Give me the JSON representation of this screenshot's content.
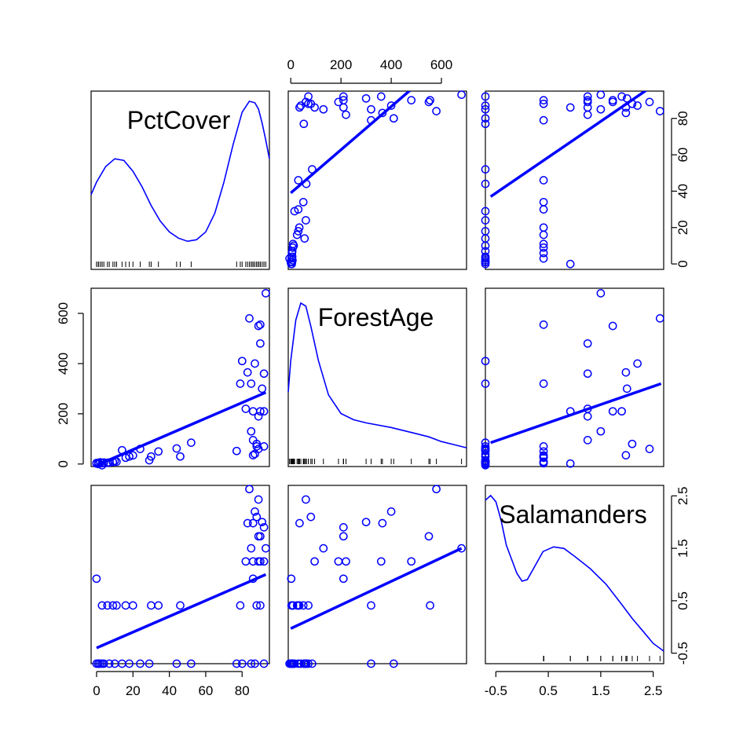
{
  "chart_data": {
    "type": "scatter",
    "title": "",
    "variables": [
      "PctCover",
      "ForestAge",
      "Salamanders"
    ],
    "color": "#0000ff",
    "ranges": {
      "PctCover": [
        -3,
        95
      ],
      "ForestAge": [
        -10,
        700
      ],
      "Salamanders": [
        -0.7,
        2.7
      ]
    },
    "ticks": {
      "PctCover": [
        0,
        20,
        40,
        60,
        80
      ],
      "ForestAge": [
        0,
        200,
        400,
        600
      ],
      "Salamanders": [
        -0.5,
        0.5,
        1.5,
        2.5
      ]
    },
    "tick_labels": {
      "PctCover": [
        "0",
        "20",
        "40",
        "60",
        "80"
      ],
      "ForestAge": [
        "0",
        "200",
        "400",
        "600"
      ],
      "Salamanders_x": [
        "-0.5",
        "0.5",
        "1.5",
        "2.5"
      ],
      "Salamanders_y": [
        "-0.5",
        "0.5",
        "1.5",
        "2.5"
      ],
      "PctCover_right": [
        "0",
        "20",
        "40",
        "60",
        "80"
      ]
    },
    "observations": {
      "PctCover": [
        0,
        0,
        1,
        1,
        2,
        3,
        3,
        4,
        6,
        7,
        9,
        10,
        11,
        14,
        16,
        18,
        20,
        24,
        29,
        30,
        34,
        44,
        46,
        52,
        77,
        79,
        80,
        82,
        83,
        84,
        85,
        85,
        86,
        86,
        86,
        87,
        87,
        88,
        88,
        89,
        89,
        89,
        90,
        90,
        90,
        91,
        92,
        92,
        92,
        93
      ],
      "ForestAge": [
        2,
        4,
        5,
        0,
        7,
        -5,
        3,
        6,
        5,
        6,
        8,
        12,
        9,
        55,
        25,
        30,
        34,
        60,
        15,
        30,
        50,
        62,
        30,
        85,
        52,
        320,
        410,
        220,
        365,
        580,
        130,
        320,
        35,
        210,
        95,
        40,
        400,
        80,
        70,
        550,
        190,
        60,
        210,
        555,
        480,
        300,
        360,
        210,
        70,
        680
      ],
      "Salamanders": [
        0.92,
        -0.7,
        -0.7,
        -0.7,
        -0.7,
        -0.7,
        0.41,
        -0.7,
        0.41,
        -0.7,
        0.41,
        -0.7,
        0.41,
        -0.7,
        0.41,
        -0.7,
        0.41,
        -0.7,
        -0.7,
        0.41,
        0.41,
        -0.7,
        0.41,
        -0.7,
        -0.7,
        0.41,
        -0.7,
        1.25,
        1.98,
        2.63,
        1.5,
        -0.7,
        1.98,
        0.92,
        1.25,
        -0.7,
        2.2,
        2.1,
        0.41,
        1.73,
        1.25,
        2.43,
        1.73,
        0.41,
        1.25,
        2.0,
        1.25,
        1.9,
        -0.7,
        1.5
      ]
    },
    "regression_lines": [
      {
        "x": "ForestAge",
        "y": "PctCover",
        "from": [
          0,
          39
        ],
        "to": [
          480,
          96
        ]
      },
      {
        "x": "Salamanders",
        "y": "PctCover",
        "from": [
          -0.6,
          37
        ],
        "to": [
          2.6,
          100
        ]
      },
      {
        "x": "PctCover",
        "y": "ForestAge",
        "from": [
          0,
          -5
        ],
        "to": [
          93,
          285
        ]
      },
      {
        "x": "Salamanders",
        "y": "ForestAge",
        "from": [
          -0.6,
          85
        ],
        "to": [
          2.65,
          320
        ]
      },
      {
        "x": "PctCover",
        "y": "Salamanders",
        "from": [
          0,
          -0.4
        ],
        "to": [
          93,
          1.0
        ]
      },
      {
        "x": "ForestAge",
        "y": "Salamanders",
        "from": [
          0,
          -0.03
        ],
        "to": [
          680,
          1.5
        ]
      }
    ],
    "densities": {
      "PctCover": {
        "x": [
          -3,
          0,
          5,
          10,
          15,
          20,
          25,
          30,
          35,
          40,
          45,
          50,
          55,
          60,
          65,
          70,
          75,
          80,
          84,
          87,
          89,
          91,
          93,
          95
        ],
        "y": [
          0.4,
          0.48,
          0.58,
          0.63,
          0.62,
          0.55,
          0.45,
          0.33,
          0.23,
          0.16,
          0.12,
          0.1,
          0.11,
          0.16,
          0.28,
          0.48,
          0.72,
          0.93,
          1.0,
          0.99,
          0.95,
          0.86,
          0.75,
          0.63
        ]
      },
      "ForestAge": {
        "x": [
          -10,
          0,
          20,
          40,
          60,
          80,
          110,
          150,
          200,
          250,
          300,
          400,
          500,
          550,
          600,
          650,
          700
        ],
        "y": [
          0.4,
          0.6,
          0.86,
          0.97,
          0.95,
          0.82,
          0.6,
          0.38,
          0.26,
          0.22,
          0.2,
          0.17,
          0.13,
          0.11,
          0.08,
          0.06,
          0.04
        ]
      },
      "Salamanders": {
        "x": [
          -0.7,
          -0.6,
          -0.5,
          -0.4,
          -0.3,
          -0.1,
          0.0,
          0.1,
          0.2,
          0.4,
          0.6,
          0.8,
          1.0,
          1.3,
          1.6,
          1.9,
          2.1,
          2.3,
          2.5,
          2.7
        ],
        "y": [
          0.97,
          1.0,
          0.96,
          0.84,
          0.68,
          0.5,
          0.45,
          0.46,
          0.52,
          0.64,
          0.67,
          0.66,
          0.61,
          0.53,
          0.43,
          0.3,
          0.21,
          0.13,
          0.05,
          0.0
        ]
      }
    }
  }
}
